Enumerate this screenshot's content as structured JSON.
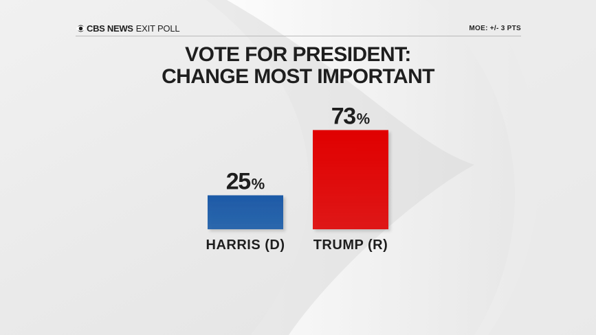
{
  "header": {
    "brand_bold": "CBS NEWS",
    "brand_light": "EXIT POLL",
    "moe": "MOE: +/- 3 PTS"
  },
  "chart_data": {
    "type": "bar",
    "title_lines": [
      "VOTE FOR PRESIDENT:",
      "CHANGE MOST IMPORTANT"
    ],
    "categories": [
      "HARRIS (D)",
      "TRUMP (R)"
    ],
    "values": [
      25,
      73
    ],
    "value_suffix": "%",
    "colors": [
      "#1a5aa7",
      "#e00000"
    ],
    "ylim": [
      0,
      100
    ],
    "grid": false,
    "legend": "none"
  }
}
